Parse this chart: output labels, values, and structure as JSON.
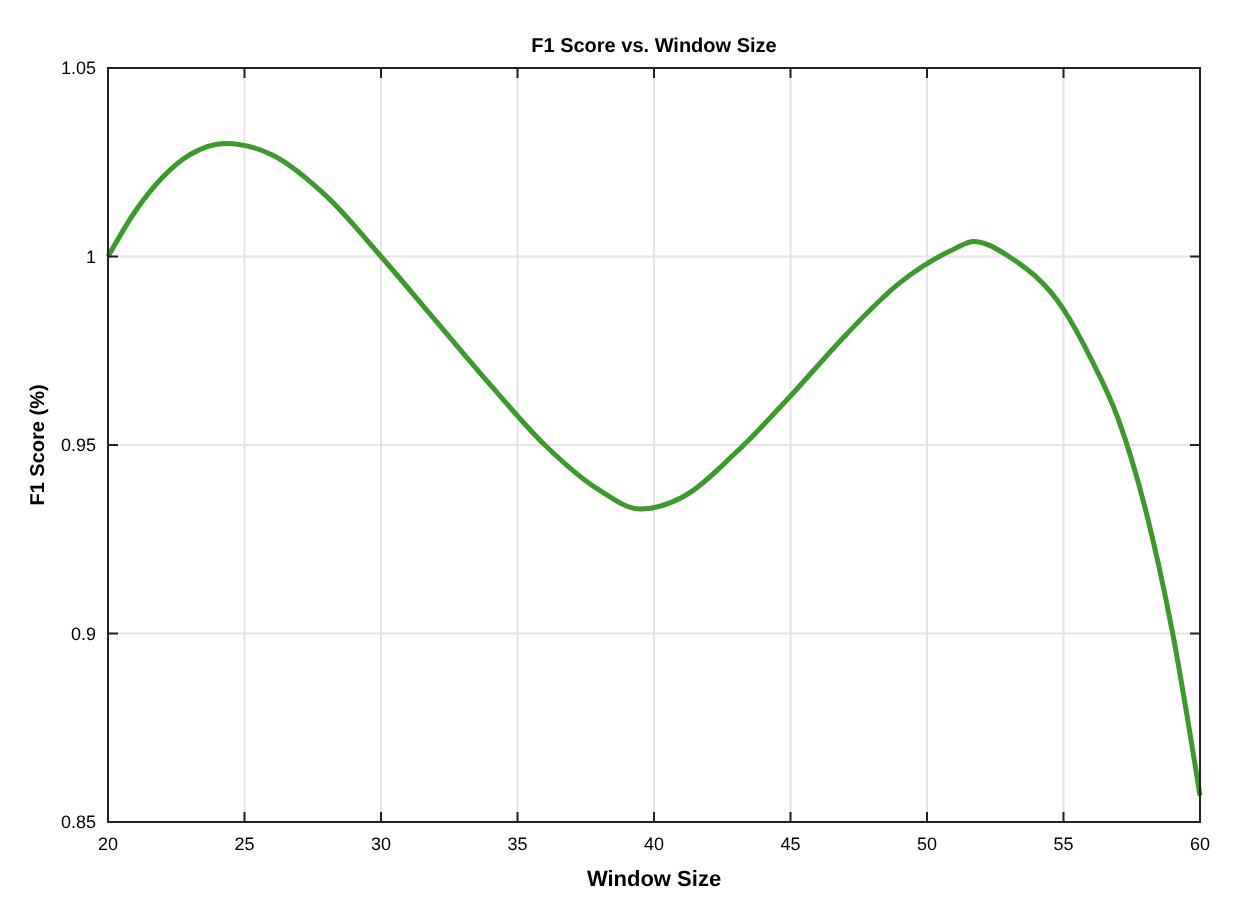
{
  "chart_data": {
    "type": "line",
    "title": "F1 Score vs. Window Size",
    "xlabel": "Window Size",
    "ylabel": "F1 Score (%)",
    "x": [
      20,
      21,
      22,
      23,
      24.3,
      26,
      28,
      30,
      32,
      34,
      36,
      38,
      39.5,
      41,
      43,
      45,
      47,
      49,
      51,
      51.7,
      53,
      55,
      56,
      57,
      58,
      59,
      60
    ],
    "series": [
      {
        "color": "#3a9a2a",
        "values": [
          1.0,
          1.012,
          1.021,
          1.027,
          1.03,
          1.027,
          1.016,
          1.0,
          0.983,
          0.966,
          0.95,
          0.938,
          0.933,
          0.936,
          0.948,
          0.963,
          0.979,
          0.993,
          1.002,
          1.004,
          1.0,
          0.986,
          0.973,
          0.957,
          0.933,
          0.9,
          0.857
        ]
      }
    ],
    "xlim": [
      20,
      60
    ],
    "xticks": [
      20,
      25,
      30,
      35,
      40,
      45,
      50,
      55,
      60
    ],
    "ylim": [
      0.85,
      1.05
    ],
    "yticks": [
      0.85,
      0.9,
      0.95,
      1,
      1.05
    ],
    "grid": true,
    "marker": "none",
    "line_style": "solid"
  }
}
